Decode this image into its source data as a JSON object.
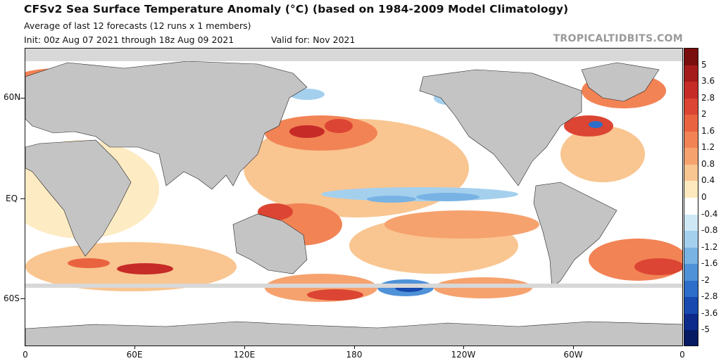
{
  "header": {
    "title": "CFSv2 Sea Surface Temperature Anomaly (°C) (based on 1984-2009 Model Climatology)",
    "subtitle": "Average of last 12 forecasts (12 runs x 1 members)",
    "init": "Init: 00z Aug 07 2021 through 18z Aug 09 2021",
    "valid": "Valid for: Nov 2021",
    "brand": "TROPICALTIDBITS.COM"
  },
  "axes": {
    "lat_labels": [
      "60N",
      "EQ",
      "60S"
    ],
    "lon_labels": [
      "0",
      "60E",
      "120E",
      "180",
      "120W",
      "60W",
      "0"
    ]
  },
  "colorbar": {
    "labels": [
      "5",
      "3.6",
      "2.8",
      "2",
      "1.6",
      "1.2",
      "0.8",
      "0.4",
      "0",
      "-0.4",
      "-0.8",
      "-1.2",
      "-1.6",
      "-2",
      "-2.8",
      "-3.6",
      "-5"
    ],
    "colors": [
      "#7a0d0d",
      "#a51a1a",
      "#c62b27",
      "#dc4533",
      "#ea6340",
      "#f28355",
      "#f6a26e",
      "#f9c590",
      "#fde9bd",
      "#ffffff",
      "#cfe8f5",
      "#a4d0ee",
      "#78b3e4",
      "#4f92d8",
      "#2c6ec9",
      "#1749af",
      "#0c2a8c",
      "#061a63"
    ]
  },
  "colors": {
    "land": "#c4c4c4",
    "ice": "#d8d8d8",
    "ocean_neutral": "#ffffff"
  }
}
